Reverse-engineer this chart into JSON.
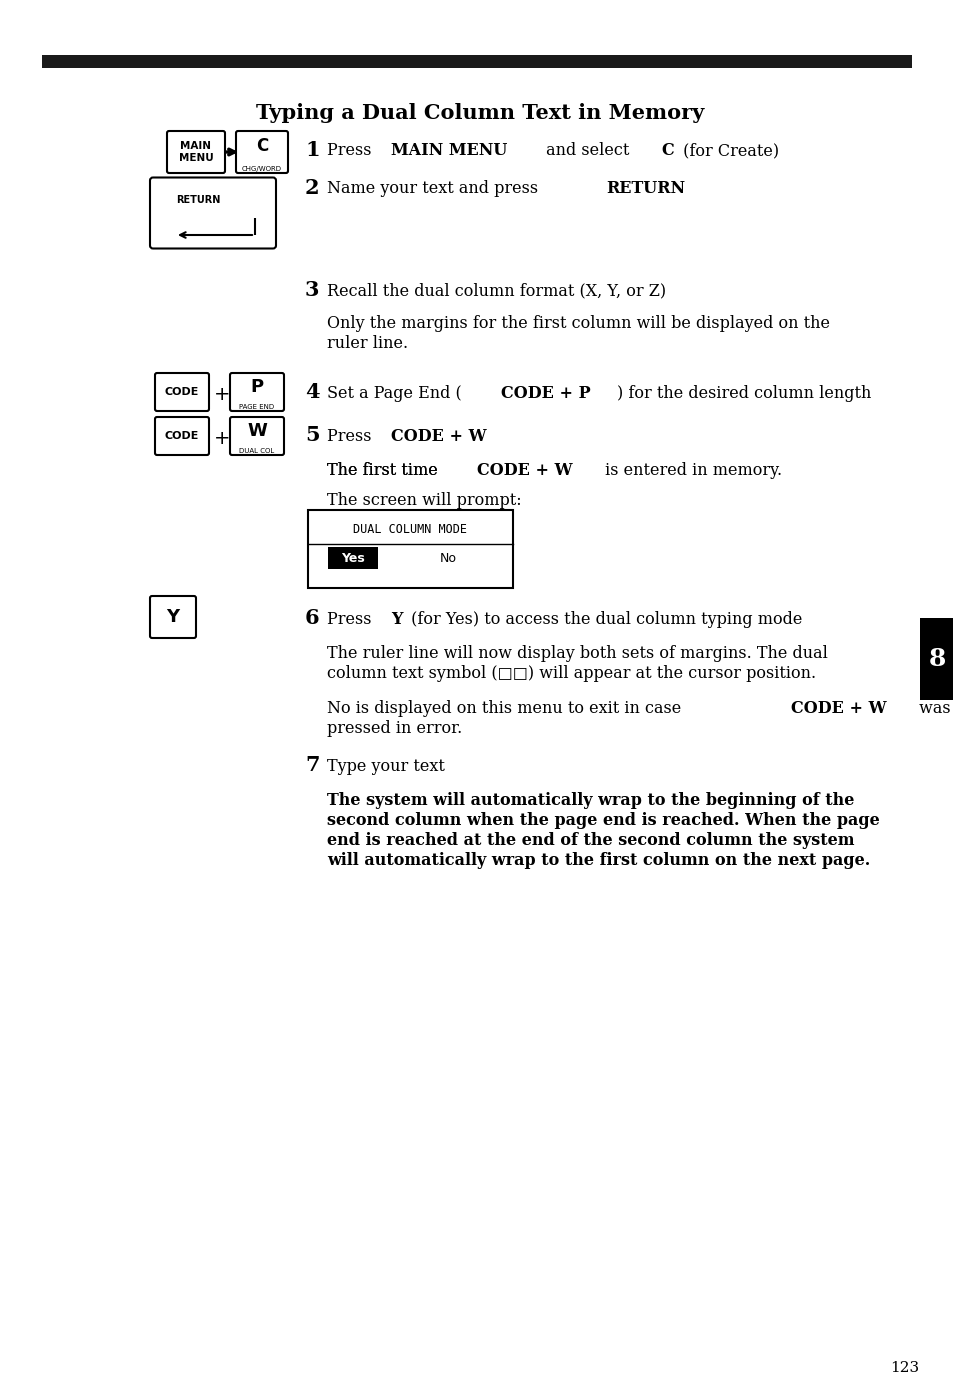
{
  "title": "Typing a Dual Column Text in Memory",
  "bg_color": "#ffffff",
  "text_color": "#000000",
  "page_number": "123",
  "tab_color": "#000000",
  "tab_number": "8",
  "header_bar_color": "#1a1a1a"
}
